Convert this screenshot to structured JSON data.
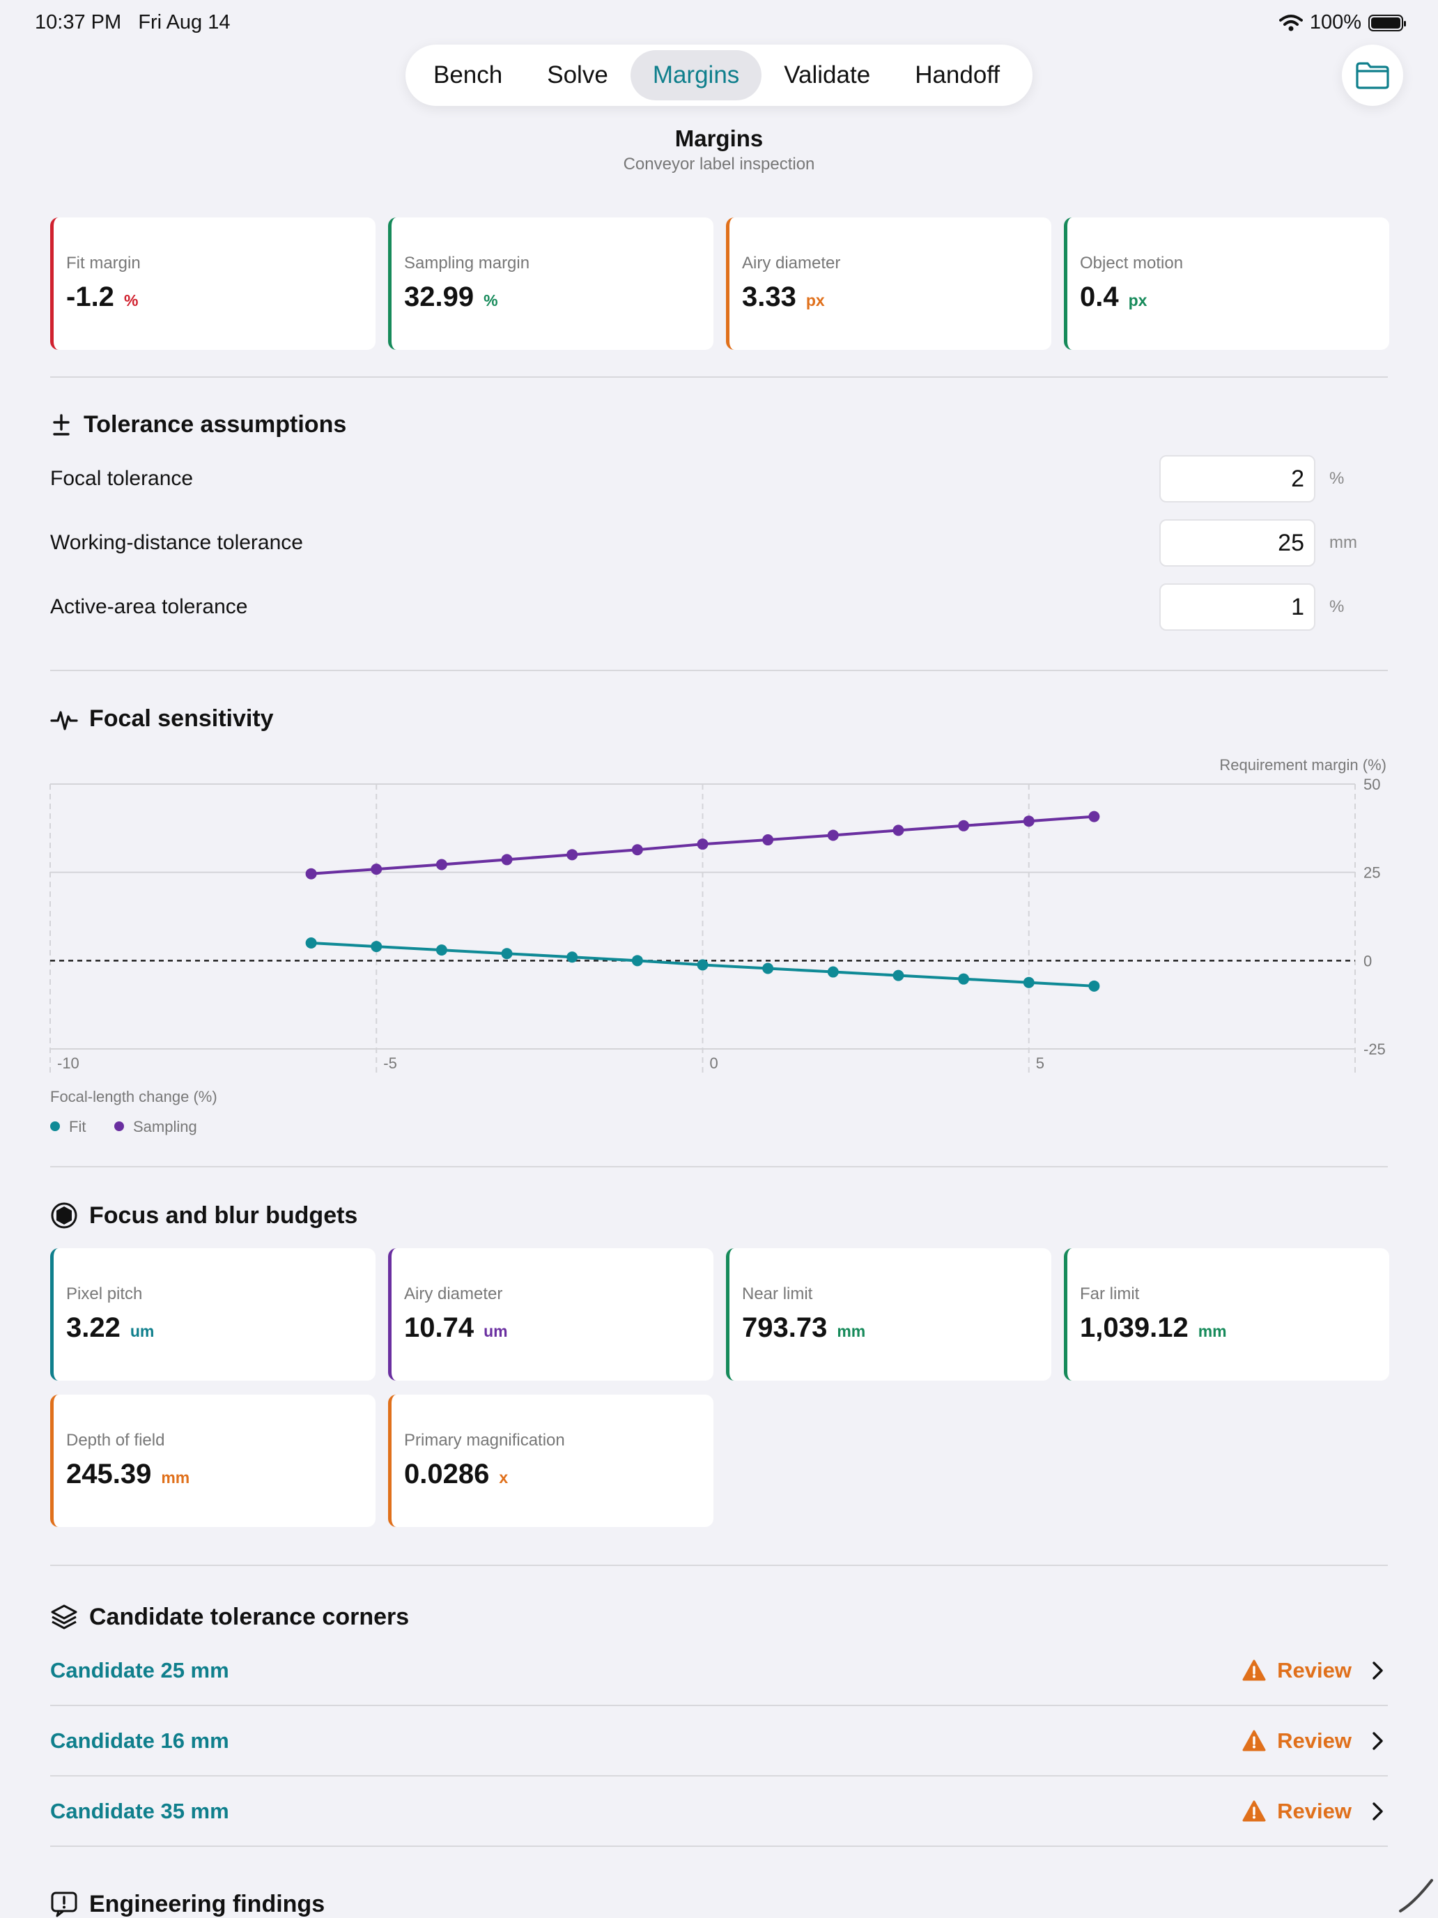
{
  "status_bar": {
    "time": "10:37 PM",
    "date": "Fri Aug 14",
    "battery": "100%",
    "battery_level": 1.0
  },
  "tabs": [
    "Bench",
    "Solve",
    "Margins",
    "Validate",
    "Handoff"
  ],
  "active_tab": "Margins",
  "header": {
    "title": "Margins",
    "subtitle": "Conveyor label inspection"
  },
  "summary_metrics": [
    {
      "label": "Fit margin",
      "value": "-1.2",
      "unit": "%",
      "color": "#d0212e"
    },
    {
      "label": "Sampling margin",
      "value": "32.99",
      "unit": "%",
      "color": "#168a5a"
    },
    {
      "label": "Airy diameter",
      "value": "3.33",
      "unit": "px",
      "color": "#e0701b"
    },
    {
      "label": "Object motion",
      "value": "0.4",
      "unit": "px",
      "color": "#168a5a"
    }
  ],
  "tolerance": {
    "title": "Tolerance assumptions",
    "rows": [
      {
        "label": "Focal tolerance",
        "value": "2",
        "unit": "%"
      },
      {
        "label": "Working-distance tolerance",
        "value": "25",
        "unit": "mm"
      },
      {
        "label": "Active-area tolerance",
        "value": "1",
        "unit": "%"
      }
    ]
  },
  "sensitivity": {
    "title": "Focal sensitivity",
    "legend": [
      {
        "label": "Fit",
        "color": "#0f8a96"
      },
      {
        "label": "Sampling",
        "color": "#6a2fa0"
      }
    ]
  },
  "chart_data": {
    "type": "line",
    "xlabel": "Focal-length change (%)",
    "ylabel": "Requirement margin (%)",
    "xlim": [
      -10,
      10
    ],
    "ylim": [
      -25,
      50
    ],
    "x_ticks": [
      -10,
      -5,
      0,
      5
    ],
    "y_ticks": [
      50,
      25,
      0,
      -25
    ],
    "grid": true,
    "reference_line": 0,
    "legend_position": "bottom-left",
    "x": [
      -6,
      -5,
      -4,
      -3,
      -2,
      -1,
      0,
      1,
      2,
      3,
      4,
      5,
      6
    ],
    "series": [
      {
        "name": "Fit",
        "color": "#0f8a96",
        "values": [
          5,
          4,
          3,
          2,
          1,
          0,
          -1.2,
          -2.2,
          -3.2,
          -4.2,
          -5.2,
          -6.2,
          -7.2
        ]
      },
      {
        "name": "Sampling",
        "color": "#6a2fa0",
        "values": [
          24.6,
          25.9,
          27.2,
          28.6,
          30,
          31.4,
          32.99,
          34.2,
          35.5,
          36.9,
          38.2,
          39.5,
          40.8
        ]
      }
    ]
  },
  "budgets": {
    "title": "Focus and blur budgets",
    "items": [
      {
        "label": "Pixel pitch",
        "value": "3.22",
        "unit": "um",
        "color": "#0f7f8c"
      },
      {
        "label": "Airy diameter",
        "value": "10.74",
        "unit": "um",
        "color": "#6a2fa0"
      },
      {
        "label": "Near limit",
        "value": "793.73",
        "unit": "mm",
        "color": "#168a5a"
      },
      {
        "label": "Far limit",
        "value": "1,039.12",
        "unit": "mm",
        "color": "#168a5a"
      },
      {
        "label": "Depth of field",
        "value": "245.39",
        "unit": "mm",
        "color": "#e0701b"
      },
      {
        "label": "Primary magnification",
        "value": "0.0286",
        "unit": "x",
        "color": "#e0701b"
      }
    ]
  },
  "candidates": {
    "title": "Candidate tolerance corners",
    "items": [
      {
        "name": "Candidate 25 mm",
        "status": "Review"
      },
      {
        "name": "Candidate 16 mm",
        "status": "Review"
      },
      {
        "name": "Candidate 35 mm",
        "status": "Review"
      }
    ]
  },
  "findings": {
    "title": "Engineering findings"
  }
}
